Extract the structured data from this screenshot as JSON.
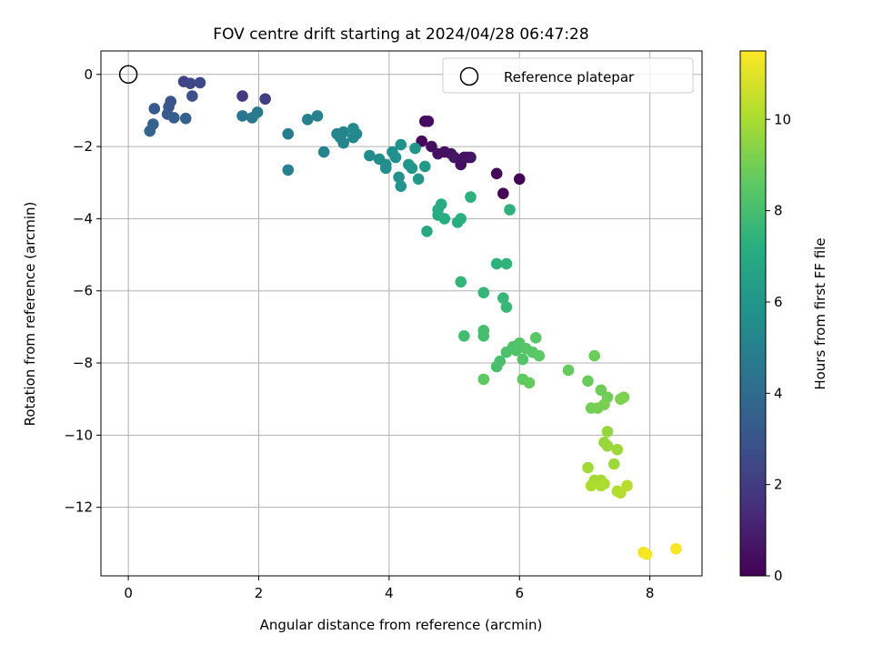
{
  "chart_data": {
    "type": "scatter",
    "title": "FOV centre drift starting at 2024/04/28 06:47:28",
    "xlabel": "Angular distance from reference (arcmin)",
    "ylabel": "Rotation from reference (arcmin)",
    "colorbar_label": "Hours from first FF file",
    "xlim": [
      -0.42,
      8.8
    ],
    "ylim": [
      -13.9,
      0.65
    ],
    "clim": [
      0,
      11.5
    ],
    "x_ticks": [
      0,
      2,
      4,
      6,
      8
    ],
    "y_ticks": [
      0,
      -2,
      -4,
      -6,
      -8,
      -10,
      -12
    ],
    "colorbar_ticks": [
      0,
      2,
      4,
      6,
      8,
      10
    ],
    "x_tick_labels": [
      "0",
      "2",
      "4",
      "6",
      "8"
    ],
    "y_tick_labels": [
      "0",
      "−2",
      "−4",
      "−6",
      "−8",
      "−10",
      "−12"
    ],
    "colorbar_tick_labels": [
      "0",
      "2",
      "4",
      "6",
      "8",
      "10"
    ],
    "grid": true,
    "legend_position": "top-right",
    "reference": {
      "name": "Reference platepar",
      "x": 0,
      "y": 0
    },
    "colormap": "viridis",
    "points": [
      [
        4.5,
        -1.85,
        0.3
      ],
      [
        4.55,
        -1.3,
        0.35
      ],
      [
        4.6,
        -1.3,
        0.4
      ],
      [
        4.65,
        -2.0,
        0.45
      ],
      [
        4.75,
        -2.2,
        0.5
      ],
      [
        4.85,
        -2.15,
        0.55
      ],
      [
        4.95,
        -2.2,
        0.6
      ],
      [
        5.0,
        -2.3,
        0.65
      ],
      [
        5.1,
        -2.5,
        0.5
      ],
      [
        5.15,
        -2.3,
        0.55
      ],
      [
        5.2,
        -2.3,
        0.6
      ],
      [
        5.25,
        -2.3,
        0.65
      ],
      [
        5.65,
        -2.75,
        0.2
      ],
      [
        6.0,
        -2.9,
        0.1
      ],
      [
        5.75,
        -3.3,
        0.15
      ],
      [
        1.75,
        -0.6,
        2.0
      ],
      [
        2.1,
        -0.68,
        2.1
      ],
      [
        0.85,
        -0.2,
        2.3
      ],
      [
        0.95,
        -0.25,
        2.5
      ],
      [
        1.1,
        -0.23,
        2.6
      ],
      [
        0.98,
        -0.6,
        2.8
      ],
      [
        0.65,
        -0.75,
        3.0
      ],
      [
        0.62,
        -0.9,
        3.1
      ],
      [
        0.4,
        -0.95,
        3.2
      ],
      [
        0.6,
        -1.1,
        3.3
      ],
      [
        0.7,
        -1.2,
        3.4
      ],
      [
        0.88,
        -1.22,
        3.5
      ],
      [
        0.38,
        -1.38,
        3.6
      ],
      [
        0.33,
        -1.57,
        3.7
      ],
      [
        1.75,
        -1.15,
        4.5
      ],
      [
        1.9,
        -1.2,
        4.6
      ],
      [
        1.98,
        -1.05,
        4.7
      ],
      [
        2.45,
        -1.65,
        4.8
      ],
      [
        2.45,
        -2.65,
        4.9
      ],
      [
        2.75,
        -1.25,
        5.0
      ],
      [
        2.9,
        -1.15,
        5.05
      ],
      [
        3.0,
        -2.15,
        5.1
      ],
      [
        3.2,
        -1.65,
        5.15
      ],
      [
        3.3,
        -1.6,
        5.2
      ],
      [
        3.3,
        -1.9,
        5.25
      ],
      [
        3.25,
        -1.75,
        5.3
      ],
      [
        3.45,
        -1.75,
        5.35
      ],
      [
        3.5,
        -1.65,
        5.4
      ],
      [
        3.45,
        -1.5,
        5.45
      ],
      [
        3.7,
        -2.25,
        5.5
      ],
      [
        3.85,
        -2.35,
        5.55
      ],
      [
        3.95,
        -2.5,
        5.6
      ],
      [
        3.95,
        -2.6,
        5.65
      ],
      [
        4.05,
        -2.15,
        5.7
      ],
      [
        4.1,
        -2.3,
        5.75
      ],
      [
        4.18,
        -1.95,
        5.8
      ],
      [
        4.15,
        -2.85,
        5.85
      ],
      [
        4.18,
        -3.1,
        5.9
      ],
      [
        4.3,
        -2.5,
        5.95
      ],
      [
        4.35,
        -2.6,
        6.0
      ],
      [
        4.4,
        -2.05,
        6.05
      ],
      [
        4.45,
        -2.9,
        6.1
      ],
      [
        4.55,
        -2.55,
        6.15
      ],
      [
        4.58,
        -4.35,
        6.9
      ],
      [
        4.75,
        -3.9,
        7.0
      ],
      [
        4.8,
        -3.6,
        7.05
      ],
      [
        4.75,
        -3.75,
        7.1
      ],
      [
        4.85,
        -4.0,
        7.15
      ],
      [
        5.05,
        -4.1,
        7.2
      ],
      [
        5.1,
        -4.0,
        7.25
      ],
      [
        5.25,
        -3.4,
        7.3
      ],
      [
        5.85,
        -3.75,
        7.35
      ],
      [
        5.65,
        -5.25,
        7.4
      ],
      [
        5.8,
        -5.25,
        7.45
      ],
      [
        5.1,
        -5.75,
        7.5
      ],
      [
        5.45,
        -6.05,
        7.55
      ],
      [
        5.75,
        -6.2,
        7.6
      ],
      [
        5.8,
        -6.45,
        7.65
      ],
      [
        5.15,
        -7.25,
        7.9
      ],
      [
        5.45,
        -7.1,
        7.95
      ],
      [
        5.45,
        -7.25,
        8.0
      ],
      [
        5.65,
        -8.1,
        8.05
      ],
      [
        5.7,
        -7.95,
        8.1
      ],
      [
        5.8,
        -7.7,
        8.15
      ],
      [
        5.9,
        -7.55,
        8.2
      ],
      [
        5.95,
        -7.65,
        8.25
      ],
      [
        6.0,
        -7.45,
        8.3
      ],
      [
        6.05,
        -7.9,
        8.35
      ],
      [
        6.1,
        -7.6,
        8.4
      ],
      [
        6.2,
        -7.7,
        8.45
      ],
      [
        6.25,
        -7.3,
        8.5
      ],
      [
        6.3,
        -7.8,
        8.55
      ],
      [
        5.45,
        -8.45,
        8.6
      ],
      [
        6.05,
        -8.45,
        8.65
      ],
      [
        6.15,
        -8.55,
        8.7
      ],
      [
        6.75,
        -8.2,
        8.75
      ],
      [
        7.05,
        -8.5,
        8.8
      ],
      [
        7.15,
        -7.8,
        8.85
      ],
      [
        7.25,
        -8.75,
        8.9
      ],
      [
        7.35,
        -8.95,
        8.95
      ],
      [
        7.1,
        -9.25,
        9.0
      ],
      [
        7.2,
        -9.25,
        9.05
      ],
      [
        7.3,
        -9.15,
        9.1
      ],
      [
        7.55,
        -9.0,
        9.15
      ],
      [
        7.6,
        -8.95,
        9.2
      ],
      [
        7.35,
        -9.9,
        9.6
      ],
      [
        7.3,
        -10.2,
        9.65
      ],
      [
        7.35,
        -10.3,
        9.7
      ],
      [
        7.5,
        -10.4,
        9.75
      ],
      [
        7.45,
        -10.8,
        9.8
      ],
      [
        7.05,
        -10.9,
        9.85
      ],
      [
        7.15,
        -11.25,
        9.9
      ],
      [
        7.25,
        -11.25,
        9.95
      ],
      [
        7.3,
        -11.35,
        10.0
      ],
      [
        7.1,
        -11.4,
        10.05
      ],
      [
        7.25,
        -11.4,
        10.1
      ],
      [
        7.5,
        -11.55,
        10.15
      ],
      [
        7.55,
        -11.6,
        10.2
      ],
      [
        7.65,
        -11.4,
        10.25
      ],
      [
        7.9,
        -13.25,
        11.3
      ],
      [
        7.95,
        -13.3,
        11.35
      ],
      [
        8.4,
        -13.15,
        11.4
      ]
    ]
  }
}
